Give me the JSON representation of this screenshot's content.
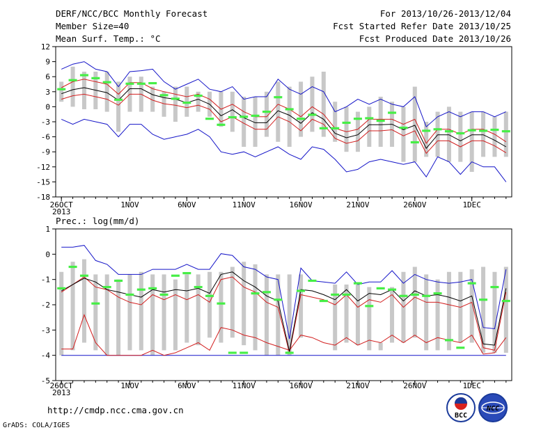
{
  "header": {
    "left": [
      "DERF/NCC/BCC Monthly Forecast",
      "Member Size=40",
      "Mean Surf. Temp.: °C"
    ],
    "right": [
      "For 2013/10/26-2013/12/04",
      "Fcst Started Refer Date 2013/10/25",
      "Fcst Produced Date 2013/10/26"
    ]
  },
  "panel2_title": "Prec.: log(mm/d)",
  "footer": {
    "url": "http://cmdp.ncc.cma.gov.cn",
    "credit": "GrADS: COLA/IGES",
    "logo_left": "BCC",
    "logo_right": "NCC"
  },
  "x_ticks": [
    "26OCT",
    "1NOV",
    "6NOV",
    "11NOV",
    "16NOV",
    "21NOV",
    "26NOV",
    "1DEC"
  ],
  "x_year": "2013",
  "colors": {
    "box": "#c8c8c8",
    "mean": "#000000",
    "red": "#d21e1e",
    "blue": "#1414c8",
    "green": "#46ee46"
  },
  "chart_data": [
    {
      "type": "box",
      "ylabel": "Mean Surf. Temp.: °C",
      "ylim": [
        -18,
        12
      ],
      "yticks": [
        -18,
        -15,
        -12,
        -9,
        -6,
        -3,
        0,
        3,
        6,
        9,
        12
      ],
      "x": [
        1,
        2,
        3,
        4,
        5,
        6,
        7,
        8,
        9,
        10,
        11,
        12,
        13,
        14,
        15,
        16,
        17,
        18,
        19,
        20,
        21,
        22,
        23,
        24,
        25,
        26,
        27,
        28,
        29,
        30,
        31,
        32,
        33,
        34,
        35,
        36,
        37,
        38,
        39,
        40
      ],
      "box_low": [
        1,
        0,
        -0.5,
        -0.5,
        -1,
        -5,
        -1,
        -1,
        -1,
        -2,
        -3,
        -2,
        -1,
        -2,
        -4,
        -5,
        -8,
        -8,
        -6,
        -7,
        -8,
        -6,
        -5,
        -6,
        -7,
        -9,
        -9,
        -8,
        -8,
        -8,
        -11,
        -11,
        -10,
        -10,
        -11,
        -11,
        -13,
        -10,
        -10,
        -10
      ],
      "box_high": [
        5,
        8,
        7,
        7,
        7,
        5,
        6,
        6,
        4,
        3,
        4,
        4,
        3,
        3,
        3,
        3,
        2,
        2,
        3,
        5,
        4,
        5,
        6,
        7,
        1,
        0,
        -1,
        0,
        2,
        1,
        0,
        4,
        -3,
        -1,
        0,
        -1,
        -1,
        -1,
        -2,
        -1
      ],
      "mean": [
        2.6,
        3.4,
        3.8,
        3.3,
        2.8,
        1.3,
        3.6,
        3.6,
        2.4,
        1.8,
        1.5,
        0.8,
        1.5,
        0.5,
        -1.8,
        -0.6,
        -2.2,
        -3.2,
        -3.2,
        -0.8,
        -1.7,
        -3.3,
        -1.2,
        -2.5,
        -5.3,
        -6.2,
        -5.6,
        -3.6,
        -3.6,
        -3.5,
        -4.6,
        -3.7,
        -8.3,
        -5.6,
        -5.6,
        -6.8,
        -5.6,
        -5.6,
        -6.7,
        -8.0
      ],
      "red_upper": [
        3.8,
        5.0,
        5.5,
        5.0,
        4.5,
        2.5,
        4.8,
        4.8,
        3.6,
        3.0,
        2.5,
        2.0,
        2.5,
        1.5,
        -0.5,
        0.5,
        -1.0,
        -2.0,
        -2.0,
        0.5,
        -0.5,
        -2.0,
        0.0,
        -1.5,
        -4.3,
        -5.0,
        -4.5,
        -2.5,
        -2.5,
        -2.5,
        -3.5,
        -2.5,
        -7.3,
        -4.5,
        -4.5,
        -5.5,
        -4.5,
        -4.5,
        -5.5,
        -7.0
      ],
      "red_lower": [
        1.5,
        2.2,
        2.5,
        2.0,
        1.5,
        0.3,
        2.5,
        2.5,
        1.3,
        0.6,
        0.3,
        -0.2,
        0.3,
        -0.5,
        -3.0,
        -2.0,
        -3.3,
        -4.5,
        -4.5,
        -2.0,
        -3.0,
        -4.8,
        -2.5,
        -3.5,
        -6.3,
        -7.3,
        -6.8,
        -4.8,
        -4.8,
        -4.6,
        -5.8,
        -4.8,
        -9.3,
        -6.8,
        -6.8,
        -8.0,
        -6.8,
        -6.8,
        -7.8,
        -9.2
      ],
      "blue_upper": [
        7.5,
        8.5,
        9.0,
        7.5,
        7.0,
        4.0,
        7.0,
        7.2,
        7.5,
        5.0,
        3.5,
        4.5,
        5.5,
        3.5,
        3.0,
        4.0,
        1.5,
        2.0,
        2.0,
        5.5,
        3.5,
        2.5,
        4.0,
        3.0,
        -1.0,
        0.0,
        1.5,
        0.5,
        1.5,
        0.5,
        0.0,
        2.0,
        -4.0,
        -2.0,
        -1.0,
        -2.0,
        -1.0,
        -1.0,
        -2.0,
        -1.0
      ],
      "blue_lower": [
        -2.5,
        -3.5,
        -2.5,
        -3.0,
        -3.5,
        -6.0,
        -3.5,
        -3.5,
        -5.5,
        -6.5,
        -6.0,
        -5.5,
        -4.5,
        -6.0,
        -9.0,
        -9.5,
        -9.0,
        -10.0,
        -9.0,
        -8.0,
        -9.5,
        -10.5,
        -8.0,
        -8.5,
        -10.5,
        -13.0,
        -12.5,
        -11.0,
        -10.5,
        -11.0,
        -11.5,
        -11.0,
        -14.0,
        -10.0,
        -11.0,
        -13.5,
        -11.0,
        -12.0,
        -12.0,
        -15.0
      ],
      "green": [
        3.5,
        5.3,
        6.3,
        5.7,
        4.9,
        1.4,
        4.6,
        4.6,
        4.7,
        2.3,
        1.6,
        0.8,
        2.2,
        -2.4,
        -3.6,
        -2.1,
        -2.0,
        -1.8,
        -1.0,
        1.9,
        -0.5,
        -2.4,
        -1.6,
        -4.3,
        -4.3,
        -3.2,
        -2.4,
        -2.3,
        -2.8,
        -1.2,
        -4.2,
        -7.1,
        -4.8,
        -4.5,
        -4.9,
        -5.3,
        -4.7,
        -4.8,
        -4.6,
        -4.9
      ]
    },
    {
      "type": "box",
      "ylabel": "Prec.: log(mm/d)",
      "ylim": [
        -5,
        1
      ],
      "yticks": [
        -5,
        -4,
        -3,
        -2,
        -1,
        0,
        1
      ],
      "x": [
        1,
        2,
        3,
        4,
        5,
        6,
        7,
        8,
        9,
        10,
        11,
        12,
        13,
        14,
        15,
        16,
        17,
        18,
        19,
        20,
        21,
        22,
        23,
        24,
        25,
        26,
        27,
        28,
        29,
        30,
        31,
        32,
        33,
        34,
        35,
        36,
        37,
        38,
        39,
        40
      ],
      "box_low": [
        -4,
        -3.8,
        -3.5,
        -3.8,
        -4,
        -4,
        -3.8,
        -3.8,
        -4,
        -3.8,
        -3.8,
        -3.5,
        -3.6,
        -3.3,
        -3.5,
        -3.3,
        -3.6,
        -3.8,
        -4,
        -4,
        -4,
        -3.3,
        -3.8,
        -3.8,
        -3.8,
        -3.5,
        -3.6,
        -3.8,
        -3.5,
        -3.5,
        -3.5,
        -3.3,
        -3.8,
        -3.8,
        -3.8,
        -3.5,
        -3.5,
        -3.9,
        -3.9,
        -3.9
      ],
      "box_high": [
        -0.7,
        -0.3,
        -0.2,
        -0.8,
        -0.8,
        -1,
        -0.8,
        -0.7,
        -0.8,
        -0.8,
        -1,
        -0.8,
        -0.8,
        -0.7,
        -0.7,
        -0.5,
        -0.3,
        -0.4,
        -0.8,
        -0.8,
        -0.8,
        -0.8,
        -3.8,
        -3.8,
        -1.2,
        -1.2,
        -1.2,
        -1.3,
        -3.8,
        -1.3,
        -0.7,
        -0.5,
        -0.8,
        -1,
        -0.7,
        -0.7,
        -0.6,
        -0.5,
        -0.7,
        -0.5
      ],
      "mean": [
        -1.45,
        -1.2,
        -0.95,
        -1.1,
        -1.4,
        -1.5,
        -1.6,
        -1.7,
        -1.4,
        -1.5,
        -1.4,
        -1.45,
        -1.35,
        -1.55,
        -0.8,
        -0.7,
        -1.05,
        -1.3,
        -1.65,
        -1.85,
        -3.85,
        -1.4,
        -1.45,
        -1.6,
        -1.8,
        -1.4,
        -1.85,
        -1.55,
        -1.6,
        -1.4,
        -1.85,
        -1.45,
        -1.65,
        -1.6,
        -1.7,
        -1.85,
        -1.65,
        -3.55,
        -3.6,
        -1.35
      ],
      "red_upper": [
        -1.5,
        -1.2,
        -0.9,
        -1.3,
        -1.4,
        -1.7,
        -1.9,
        -2.0,
        -1.6,
        -1.8,
        -1.6,
        -1.8,
        -1.6,
        -1.9,
        -1.0,
        -0.9,
        -1.3,
        -1.5,
        -1.9,
        -2.1,
        -3.9,
        -1.6,
        -1.7,
        -1.8,
        -2.0,
        -1.6,
        -2.1,
        -1.8,
        -1.9,
        -1.6,
        -2.1,
        -1.7,
        -1.9,
        -1.9,
        -2.0,
        -2.1,
        -1.9,
        -3.7,
        -3.8,
        -1.5
      ],
      "red_lower": [
        -3.75,
        -3.75,
        -2.4,
        -3.5,
        -4.0,
        -4.0,
        -4.0,
        -4.0,
        -3.8,
        -4.0,
        -3.9,
        -3.7,
        -3.5,
        -3.8,
        -2.9,
        -3.0,
        -3.2,
        -3.3,
        -3.5,
        -3.65,
        -3.8,
        -3.2,
        -3.3,
        -3.5,
        -3.6,
        -3.3,
        -3.6,
        -3.4,
        -3.5,
        -3.2,
        -3.5,
        -3.2,
        -3.5,
        -3.3,
        -3.4,
        -3.5,
        -3.2,
        -3.95,
        -3.9,
        -3.3
      ],
      "blue_upper": [
        0.28,
        0.28,
        0.35,
        -0.25,
        -0.4,
        -0.8,
        -0.8,
        -0.8,
        -0.6,
        -0.6,
        -0.6,
        -0.4,
        -0.6,
        -0.6,
        0.02,
        -0.05,
        -0.5,
        -0.6,
        -0.9,
        -1.0,
        -3.35,
        -0.55,
        -1.05,
        -1.1,
        -1.15,
        -0.7,
        -1.2,
        -1.1,
        -1.1,
        -0.65,
        -1.15,
        -0.8,
        -1.0,
        -1.1,
        -1.15,
        -1.1,
        -1.0,
        -2.9,
        -2.95,
        -0.6
      ],
      "blue_lower": [
        -4,
        -4,
        -4,
        -4,
        -4,
        -4,
        -4,
        -4,
        -4,
        -4,
        -4,
        -4,
        -4,
        -4,
        -4,
        -4,
        -4,
        -4,
        -4,
        -4,
        -4,
        -4,
        -4,
        -4,
        -4,
        -4,
        -4,
        -4,
        -4,
        -4,
        -4,
        -4,
        -4,
        -4,
        -4,
        -4,
        -4,
        -4,
        -4,
        -4
      ],
      "green": [
        -1.35,
        -0.5,
        -0.85,
        -1.95,
        -1.3,
        -1.05,
        -1.6,
        -1.4,
        -1.35,
        -1.6,
        -0.85,
        -0.75,
        -1.3,
        -1.65,
        -1.95,
        -3.9,
        -3.9,
        -1.55,
        -1.5,
        -1.8,
        -3.9,
        -1.45,
        -1.05,
        -1.85,
        -1.6,
        -1.6,
        -1.15,
        -2.05,
        -1.35,
        -1.4,
        -1.65,
        -1.6,
        -1.65,
        -1.55,
        -3.4,
        -3.7,
        -1.15,
        -1.8,
        -1.3,
        -1.85
      ]
    }
  ]
}
